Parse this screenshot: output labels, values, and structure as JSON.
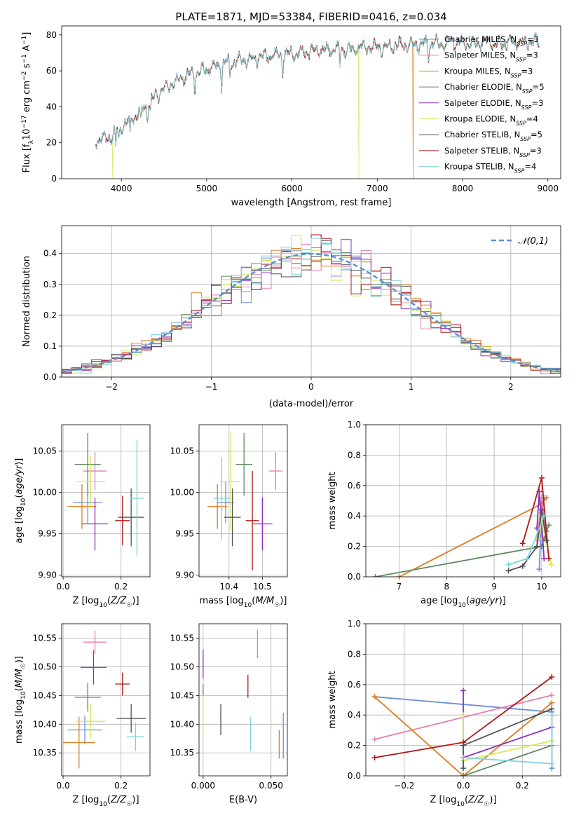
{
  "chart_data": [
    {
      "id": "spectrum",
      "type": "line",
      "title": "PLATE=1871, MJD=53384, FIBERID=0416, z=0.034",
      "xlabel": "wavelength [Angstrom, rest frame]",
      "ylabel": "Flux [f_λ10⁻¹⁷ erg cm⁻² s⁻¹ A⁻¹]",
      "xlim": [
        3300,
        9150
      ],
      "ylim": [
        0,
        85
      ],
      "xticks": [
        4000,
        5000,
        6000,
        7000,
        8000,
        9000
      ],
      "yticks": [
        0,
        20,
        40,
        60,
        80
      ],
      "grid": false,
      "legend": "top-right",
      "series": [
        {
          "name": "Chabrier MILES, N_SSP=3",
          "color": "#6a8fd8"
        },
        {
          "name": "Salpeter MILES, N_SSP=3",
          "color": "#e57fb2"
        },
        {
          "name": "Kroupa MILES, N_SSP=3",
          "color": "#e07b20"
        },
        {
          "name": "Chabrier ELODIE, N_SSP=5",
          "color": "#5e8a5e"
        },
        {
          "name": "Salpeter ELODIE, N_SSP=3",
          "color": "#8e2fc0"
        },
        {
          "name": "Kroupa ELODIE, N_SSP=4",
          "color": "#d4e85a"
        },
        {
          "name": "Chabrier STELIB, N_SSP=5",
          "color": "#505050"
        },
        {
          "name": "Salpeter STELIB, N_SSP=3",
          "color": "#b01818"
        },
        {
          "name": "Kroupa STELIB, N_SSP=4",
          "color": "#7fd4dc"
        }
      ],
      "anchors": {
        "x": [
          3700,
          3800,
          3900,
          4000,
          4100,
          4200,
          4300,
          4400,
          4500,
          4600,
          4700,
          4800,
          4900,
          5000,
          5100,
          5200,
          5300,
          5400,
          5500,
          5600,
          5700,
          5800,
          5900,
          6000,
          6100,
          6200,
          6300,
          6400,
          6500,
          6600,
          6700,
          6800,
          6900,
          7000,
          7100,
          7200,
          7300,
          7400,
          7500,
          7600,
          7700,
          7800,
          7900,
          8000,
          8100,
          8200,
          8300,
          8400,
          8500,
          8600,
          8700,
          8800,
          8900
        ],
        "y": [
          21,
          22,
          24,
          29,
          33,
          36,
          41,
          46,
          50,
          53,
          56,
          58,
          59,
          61,
          62,
          64,
          65,
          66,
          66,
          67,
          68,
          69,
          69,
          70,
          70,
          71,
          71,
          72,
          72,
          72,
          72,
          73,
          73,
          73,
          73,
          74,
          74,
          74,
          75,
          75,
          75,
          75,
          76,
          76,
          75,
          76,
          76,
          75,
          76,
          76,
          76,
          76,
          76
        ]
      },
      "dips": [
        {
          "x": 3900,
          "y": 0,
          "series": "Kroupa ELODIE, N_SSP=4"
        },
        {
          "x": 6785,
          "y": 0,
          "series": "Kroupa ELODIE, N_SSP=4"
        },
        {
          "x": 7420,
          "y": 0,
          "series": "Kroupa MILES, N_SSP=3"
        }
      ]
    },
    {
      "id": "residuals",
      "type": "line",
      "xlabel": "(data-model)/error",
      "ylabel": "Normed distribution",
      "xlim": [
        -2.5,
        2.5
      ],
      "ylim": [
        0,
        0.49
      ],
      "xticks": [
        -2,
        -1,
        0,
        1,
        2
      ],
      "yticks": [
        0.0,
        0.1,
        0.2,
        0.3,
        0.4
      ],
      "grid": true,
      "legend": "top-right",
      "reference": {
        "name": "𝒩(0,1)",
        "color": "#5b8fd0"
      },
      "bins": 50
    },
    {
      "id": "age-vs-Z",
      "type": "scatter",
      "xlabel": "Z [log₁₀(Z/Z☉)]",
      "ylabel": "age  [log₁₀(age/yr)]",
      "xlim": [
        -0.005,
        0.3
      ],
      "ylim": [
        9.898,
        10.082
      ],
      "xticks": [
        0.0,
        0.2
      ],
      "yticks": [
        9.9,
        9.95,
        10.0,
        10.05
      ],
      "grid": true,
      "points": [
        {
          "series": "Chabrier MILES, N_SSP=3",
          "x": 0.085,
          "xerr": 0.05,
          "y": 9.988,
          "yerr": 0.025
        },
        {
          "series": "Salpeter MILES, N_SSP=3",
          "x": 0.11,
          "xerr": 0.04,
          "y": 10.026,
          "yerr": 0.023
        },
        {
          "series": "Kroupa MILES, N_SSP=3",
          "x": 0.065,
          "xerr": 0.05,
          "y": 9.983,
          "yerr": 0.027
        },
        {
          "series": "Chabrier ELODIE, N_SSP=5",
          "x": 0.085,
          "xerr": 0.045,
          "y": 10.034,
          "yerr": 0.038
        },
        {
          "series": "Salpeter ELODIE, N_SSP=3",
          "x": 0.11,
          "xerr": 0.045,
          "y": 9.962,
          "yerr": 0.032
        },
        {
          "series": "Kroupa ELODIE, N_SSP=4",
          "x": 0.095,
          "xerr": 0.05,
          "y": 10.013,
          "yerr": 0.032
        },
        {
          "series": "Chabrier STELIB, N_SSP=5",
          "x": 0.235,
          "xerr": 0.045,
          "y": 9.97,
          "yerr": 0.035
        },
        {
          "series": "Salpeter STELIB, N_SSP=3",
          "x": 0.205,
          "xerr": 0.025,
          "y": 9.966,
          "yerr": 0.03
        },
        {
          "series": "Kroupa STELIB, N_SSP=4",
          "x": 0.255,
          "xerr": 0.025,
          "y": 9.993,
          "yerr": 0.07
        }
      ]
    },
    {
      "id": "age-vs-mass",
      "type": "scatter",
      "xlabel": "mass [log₁₀(M/M☉)]",
      "ylabel": "",
      "xlim": [
        10.31,
        10.575
      ],
      "ylim": [
        9.898,
        10.082
      ],
      "xticks": [
        10.4,
        10.5
      ],
      "yticks": [
        9.9,
        9.95,
        10.0,
        10.05
      ],
      "grid": true,
      "points": [
        {
          "series": "Chabrier MILES, N_SSP=3",
          "x": 10.39,
          "xerr": 0.025,
          "y": 9.988,
          "yerr": 0.025
        },
        {
          "series": "Salpeter MILES, N_SSP=3",
          "x": 10.54,
          "xerr": 0.02,
          "y": 10.026,
          "yerr": 0.023
        },
        {
          "series": "Kroupa MILES, N_SSP=3",
          "x": 10.365,
          "xerr": 0.03,
          "y": 9.983,
          "yerr": 0.027
        },
        {
          "series": "Chabrier ELODIE, N_SSP=5",
          "x": 10.445,
          "xerr": 0.025,
          "y": 10.034,
          "yerr": 0.038
        },
        {
          "series": "Salpeter ELODIE, N_SSP=3",
          "x": 10.5,
          "xerr": 0.03,
          "y": 9.962,
          "yerr": 0.032
        },
        {
          "series": "Kroupa ELODIE, N_SSP=4",
          "x": 10.405,
          "xerr": 0.03,
          "y": 10.013,
          "yerr": 0.06
        },
        {
          "series": "Chabrier STELIB, N_SSP=5",
          "x": 10.41,
          "xerr": 0.025,
          "y": 9.97,
          "yerr": 0.035
        },
        {
          "series": "Salpeter STELIB, N_SSP=3",
          "x": 10.47,
          "xerr": 0.02,
          "y": 9.966,
          "yerr": 0.06
        },
        {
          "series": "Kroupa STELIB, N_SSP=4",
          "x": 10.378,
          "xerr": 0.025,
          "y": 9.993,
          "yerr": 0.05
        }
      ]
    },
    {
      "id": "weight-vs-age",
      "type": "line",
      "xlabel": "age  [log₁₀(age/yr)]",
      "ylabel": "mass weight",
      "xlim": [
        6.3,
        10.4
      ],
      "ylim": [
        0,
        1.0
      ],
      "xticks": [
        7,
        8,
        9,
        10
      ],
      "yticks": [
        0.0,
        0.2,
        0.4,
        0.6,
        0.8,
        1.0
      ],
      "grid": true,
      "series": [
        {
          "name": "Chabrier MILES, N_SSP=3",
          "x": [
            9.95,
            10.0,
            10.05
          ],
          "y": [
            0.05,
            0.42,
            0.52
          ]
        },
        {
          "name": "Salpeter MILES, N_SSP=3",
          "x": [
            9.9,
            10.0,
            10.1
          ],
          "y": [
            0.24,
            0.52,
            0.24
          ]
        },
        {
          "name": "Kroupa MILES, N_SSP=3",
          "x": [
            7.0,
            10.0,
            10.1
          ],
          "y": [
            0.0,
            0.48,
            0.52
          ]
        },
        {
          "name": "Chabrier ELODIE, N_SSP=5",
          "x": [
            6.5,
            10.0,
            10.05,
            10.1,
            10.15
          ],
          "y": [
            0.0,
            0.2,
            0.25,
            0.3,
            0.34
          ]
        },
        {
          "name": "Salpeter ELODIE, N_SSP=3",
          "x": [
            9.9,
            9.95,
            10.05
          ],
          "y": [
            0.32,
            0.56,
            0.12
          ]
        },
        {
          "name": "Kroupa ELODIE, N_SSP=4",
          "x": [
            9.95,
            10.0,
            10.1,
            10.2
          ],
          "y": [
            0.25,
            0.4,
            0.23,
            0.08
          ]
        },
        {
          "name": "Chabrier STELIB, N_SSP=5",
          "x": [
            9.3,
            9.6,
            9.9,
            10.0,
            10.1
          ],
          "y": [
            0.04,
            0.07,
            0.2,
            0.44,
            0.24
          ]
        },
        {
          "name": "Salpeter STELIB, N_SSP=3",
          "x": [
            9.6,
            10.0,
            10.15
          ],
          "y": [
            0.22,
            0.65,
            0.12
          ]
        },
        {
          "name": "Kroupa STELIB, N_SSP=4",
          "x": [
            9.3,
            9.7,
            10.05
          ],
          "y": [
            0.08,
            0.12,
            0.4
          ]
        }
      ]
    },
    {
      "id": "mass-vs-Z",
      "type": "scatter",
      "xlabel": "Z [log₁₀(Z/Z☉)]",
      "ylabel": "mass [log₁₀(M/M☉)]",
      "xlim": [
        -0.005,
        0.3
      ],
      "ylim": [
        10.31,
        10.575
      ],
      "xticks": [
        0.0,
        0.2
      ],
      "yticks": [
        10.35,
        10.4,
        10.45,
        10.5,
        10.55
      ],
      "grid": true,
      "points": [
        {
          "series": "Chabrier MILES, N_SSP=3",
          "x": 0.075,
          "xerr": 0.06,
          "y": 10.39,
          "yerr": 0.025
        },
        {
          "series": "Salpeter MILES, N_SSP=3",
          "x": 0.11,
          "xerr": 0.04,
          "y": 10.543,
          "yerr": 0.02
        },
        {
          "series": "Kroupa MILES, N_SSP=3",
          "x": 0.055,
          "xerr": 0.055,
          "y": 10.368,
          "yerr": 0.045
        },
        {
          "series": "Chabrier ELODIE, N_SSP=5",
          "x": 0.085,
          "xerr": 0.045,
          "y": 10.447,
          "yerr": 0.025
        },
        {
          "series": "Salpeter ELODIE, N_SSP=3",
          "x": 0.105,
          "xerr": 0.045,
          "y": 10.499,
          "yerr": 0.03
        },
        {
          "series": "Kroupa ELODIE, N_SSP=4",
          "x": 0.095,
          "xerr": 0.05,
          "y": 10.405,
          "yerr": 0.03
        },
        {
          "series": "Chabrier STELIB, N_SSP=5",
          "x": 0.235,
          "xerr": 0.05,
          "y": 10.41,
          "yerr": 0.025
        },
        {
          "series": "Salpeter STELIB, N_SSP=3",
          "x": 0.205,
          "xerr": 0.025,
          "y": 10.47,
          "yerr": 0.02
        },
        {
          "series": "Kroupa STELIB, N_SSP=4",
          "x": 0.25,
          "xerr": 0.03,
          "y": 10.378,
          "yerr": 0.025
        }
      ]
    },
    {
      "id": "mass-vs-ebv",
      "type": "scatter",
      "xlabel": "E(B-V)",
      "ylabel": "",
      "xlim": [
        -0.003,
        0.062
      ],
      "ylim": [
        10.31,
        10.575
      ],
      "xticks": [
        0.0,
        0.05
      ],
      "xticklabels": [
        "0.000",
        "0.050"
      ],
      "yticks": [
        10.35,
        10.4,
        10.45,
        10.5,
        10.55
      ],
      "grid": true,
      "points": [
        {
          "series": "Chabrier MILES, N_SSP=3",
          "x": 0.059,
          "y": 10.38,
          "yerr": 0.04
        },
        {
          "series": "Salpeter MILES, N_SSP=3",
          "x": 0.04,
          "y": 10.54,
          "yerr": 0.025
        },
        {
          "series": "Kroupa MILES, N_SSP=3",
          "x": 0.056,
          "y": 10.365,
          "yerr": 0.025
        },
        {
          "series": "Chabrier ELODIE, N_SSP=5",
          "x": 0.0,
          "y": 10.46,
          "yerr": 0.01
        },
        {
          "series": "Salpeter ELODIE, N_SSP=3",
          "x": 0.0,
          "y": 10.505,
          "yerr": 0.025
        },
        {
          "series": "Kroupa ELODIE, N_SSP=4",
          "x": 0.0,
          "y": 10.415,
          "yerr": 0.03
        },
        {
          "series": "Chabrier STELIB, N_SSP=5",
          "x": 0.013,
          "y": 10.408,
          "yerr": 0.027
        },
        {
          "series": "Salpeter STELIB, N_SSP=3",
          "x": 0.033,
          "y": 10.466,
          "yerr": 0.02
        },
        {
          "series": "Kroupa STELIB, N_SSP=4",
          "x": 0.035,
          "y": 10.383,
          "yerr": 0.03
        }
      ]
    },
    {
      "id": "weight-vs-Z",
      "type": "line",
      "xlabel": "Z [log₁₀(Z/Z☉)]",
      "ylabel": "mass weight",
      "xlim": [
        -0.33,
        0.33
      ],
      "ylim": [
        0,
        1.0
      ],
      "xticks": [
        -0.2,
        0.0,
        0.2
      ],
      "yticks": [
        0.0,
        0.2,
        0.4,
        0.6,
        0.8,
        1.0
      ],
      "grid": true,
      "series": [
        {
          "name": "Chabrier MILES, N_SSP=3",
          "x": [
            -0.3,
            0.3,
            0.3
          ],
          "y": [
            0.52,
            0.42,
            0.05
          ]
        },
        {
          "name": "Salpeter MILES, N_SSP=3",
          "x": [
            -0.3,
            0.3
          ],
          "y": [
            0.24,
            0.53
          ]
        },
        {
          "name": "Kroupa MILES, N_SSP=3",
          "x": [
            -0.3,
            0.0,
            0.3
          ],
          "y": [
            0.52,
            0.0,
            0.48
          ]
        },
        {
          "name": "Chabrier ELODIE, N_SSP=5",
          "x": [
            0.0,
            0.3
          ],
          "y": [
            0.0,
            0.2
          ]
        },
        {
          "name": "Salpeter ELODIE, N_SSP=3",
          "x": [
            0.0,
            0.0,
            0.3
          ],
          "y": [
            0.56,
            0.12,
            0.32
          ]
        },
        {
          "name": "Kroupa ELODIE, N_SSP=4",
          "x": [
            0.0,
            0.0,
            0.3
          ],
          "y": [
            0.4,
            0.1,
            0.23
          ]
        },
        {
          "name": "Chabrier STELIB, N_SSP=5",
          "x": [
            0.0,
            0.0,
            0.3
          ],
          "y": [
            0.05,
            0.2,
            0.44
          ]
        },
        {
          "name": "Salpeter STELIB, N_SSP=3",
          "x": [
            -0.3,
            0.0,
            0.3
          ],
          "y": [
            0.12,
            0.22,
            0.65
          ]
        },
        {
          "name": "Kroupa STELIB, N_SSP=4",
          "x": [
            0.0,
            0.3,
            0.3
          ],
          "y": [
            0.12,
            0.08,
            0.4
          ]
        }
      ]
    }
  ]
}
